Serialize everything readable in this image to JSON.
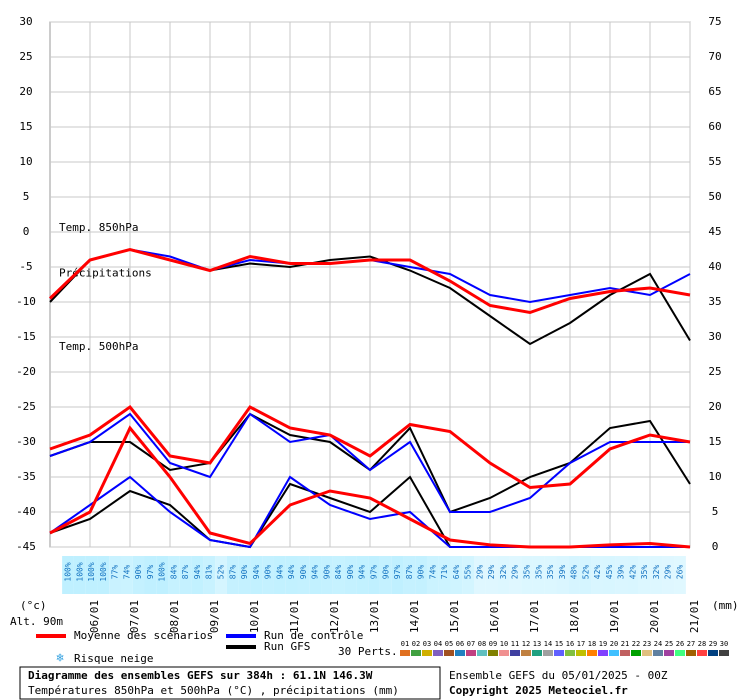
{
  "chart_data": {
    "type": "line",
    "x": [
      0,
      24,
      48,
      72,
      96,
      120,
      144,
      168,
      192,
      216,
      240,
      264,
      288,
      312,
      336,
      360,
      384
    ],
    "xlim": [
      0,
      384
    ],
    "xticks": [
      {
        "value": 24,
        "label": "06/01"
      },
      {
        "value": 48,
        "label": "07/01"
      },
      {
        "value": 72,
        "label": "08/01"
      },
      {
        "value": 96,
        "label": "09/01"
      },
      {
        "value": 120,
        "label": "10/01"
      },
      {
        "value": 144,
        "label": "11/01"
      },
      {
        "value": 168,
        "label": "12/01"
      },
      {
        "value": 192,
        "label": "13/01"
      },
      {
        "value": 216,
        "label": "14/01"
      },
      {
        "value": 240,
        "label": "15/01"
      },
      {
        "value": 264,
        "label": "16/01"
      },
      {
        "value": 288,
        "label": "17/01"
      },
      {
        "value": 312,
        "label": "18/01"
      },
      {
        "value": 336,
        "label": "19/01"
      },
      {
        "value": 360,
        "label": "20/01"
      },
      {
        "value": 384,
        "label": "21/01"
      }
    ],
    "ylim": [
      -45,
      30
    ],
    "yticks": [
      -45,
      -40,
      -35,
      -30,
      -25,
      -20,
      -15,
      -10,
      -5,
      0,
      5,
      10,
      15,
      20,
      25,
      30
    ],
    "y2lim": [
      0,
      75
    ],
    "y2ticks": [
      0,
      5,
      10,
      15,
      20,
      25,
      30,
      35,
      40,
      45,
      50,
      55,
      60,
      65,
      70,
      75
    ],
    "ylabel": "(°c)",
    "y2label": "(mm)",
    "altitude": "Alt. 90m",
    "grid": true,
    "annotations": [
      {
        "text": "Temp. 850hPa",
        "y": 0
      },
      {
        "text": "Précipitations",
        "y": -6.5
      },
      {
        "text": "Temp. 500hPa",
        "y": -17
      }
    ],
    "series": [
      {
        "name": "Moyenne des scénarios",
        "color": "#ff0000",
        "t850": [
          -9.5,
          -4,
          -2.5,
          -4,
          -5.5,
          -3.5,
          -4.5,
          -4.5,
          -4,
          -4,
          -7,
          -10.5,
          -11.5,
          -9.5,
          -8.5,
          -8,
          -9
        ],
        "t500": [
          -31,
          -29,
          -25,
          -32,
          -33,
          -25,
          -28,
          -29,
          -32,
          -27.5,
          -28.5,
          -33,
          -36.5,
          -36,
          -31,
          -29,
          -30
        ],
        "precip": [
          2,
          5,
          17,
          10,
          2,
          0.5,
          6,
          8,
          7,
          4,
          1,
          0.3,
          0,
          0,
          0.3,
          0.5,
          0
        ]
      },
      {
        "name": "Run de contrôle",
        "color": "#0000ff",
        "t850": [
          -9.5,
          -4,
          -2.5,
          -3.5,
          -5.5,
          -4,
          -4.5,
          -4.5,
          -4,
          -5,
          -6,
          -9,
          -10,
          -9,
          -8,
          -9,
          -6
        ],
        "t500": [
          -32,
          -30,
          -26,
          -33,
          -35,
          -26,
          -30,
          -29,
          -34,
          -30,
          -40,
          -40,
          -38,
          -33,
          -30,
          -30,
          -30
        ],
        "precip": [
          2,
          6,
          10,
          5,
          1,
          0,
          10,
          6,
          4,
          5,
          0,
          0,
          0,
          0,
          0,
          0,
          0
        ]
      },
      {
        "name": "Run GFS",
        "color": "#000000",
        "t850": [
          -10,
          -4,
          -2.5,
          -4,
          -5.5,
          -4.5,
          -5,
          -4,
          -3.5,
          -5.5,
          -8,
          -12,
          -16,
          -13,
          -9,
          -6,
          -15.5
        ],
        "t500": [
          -32,
          -30,
          -30,
          -34,
          -33,
          -26,
          -29,
          -30,
          -34,
          -28,
          -40,
          -38,
          -35,
          -33,
          -28,
          -27,
          -36
        ],
        "precip": [
          2,
          4,
          8,
          6,
          1,
          0,
          9,
          7,
          5,
          10,
          0,
          0,
          0,
          0,
          0,
          0,
          0
        ]
      }
    ],
    "snow_risk": {
      "label": "Risque neige",
      "values": [
        100,
        100,
        100,
        100,
        77,
        74,
        90,
        97,
        100,
        84,
        87,
        94,
        81,
        52,
        87,
        90,
        94,
        90,
        94,
        94,
        90,
        94,
        90,
        84,
        90,
        94,
        97,
        90,
        97,
        87,
        90,
        74,
        71,
        64,
        55,
        29,
        29,
        32,
        29,
        35,
        35,
        35,
        39,
        48,
        52,
        42,
        45,
        39,
        42,
        35,
        32,
        29,
        26
      ],
      "value_labels": [
        "100%",
        "100%",
        "100%",
        "100%",
        "77%",
        "74%",
        "90%",
        "97%",
        "100%",
        "84%",
        "87%",
        "94%",
        "81%",
        "52%",
        "87%",
        "90%",
        "94%",
        "90%",
        "94%",
        "94%",
        "90%",
        "94%",
        "90%",
        "84%",
        "90%",
        "94%",
        "97%",
        "90%",
        "97%",
        "87%",
        "90%",
        "74%",
        "71%",
        "64%",
        "55%",
        "29%",
        "29%",
        "32%",
        "29%",
        "35%",
        "35%",
        "35%",
        "39%",
        "48%",
        "52%",
        "42%",
        "45%",
        "39%",
        "42%",
        "35%",
        "32%",
        "29%",
        "26%"
      ]
    },
    "perturbations": {
      "label": "30 Perts.",
      "names": [
        "01",
        "02",
        "03",
        "04",
        "05",
        "06",
        "07",
        "08",
        "09",
        "10",
        "11",
        "12",
        "13",
        "14",
        "15",
        "16",
        "17",
        "18",
        "19",
        "20",
        "21",
        "22",
        "23",
        "24",
        "25",
        "26",
        "27",
        "28",
        "29",
        "30"
      ],
      "colors": [
        "#e07020",
        "#40a040",
        "#d0b000",
        "#8060c0",
        "#a05020",
        "#2080c0",
        "#c04080",
        "#60c0c0",
        "#808000",
        "#f09090",
        "#4040a0",
        "#c08040",
        "#20a080",
        "#a0a0a0",
        "#6060ff",
        "#80c040",
        "#c0c000",
        "#ff8000",
        "#8040ff",
        "#40c0ff",
        "#c06060",
        "#00a000",
        "#e0c080",
        "#6080a0",
        "#a040a0",
        "#40ff80",
        "#a06000",
        "#ff4040",
        "#004080",
        "#404040"
      ]
    },
    "title": "Diagramme des ensembles GEFS sur 384h : 61.1N 146.3W",
    "subtitle": "Températures 850hPa et 500hPa (°C) , précipitations (mm)",
    "run_info": "Ensemble GEFS du 05/01/2025 - 00Z",
    "copyright": "Copyright 2025 Meteociel.fr"
  }
}
